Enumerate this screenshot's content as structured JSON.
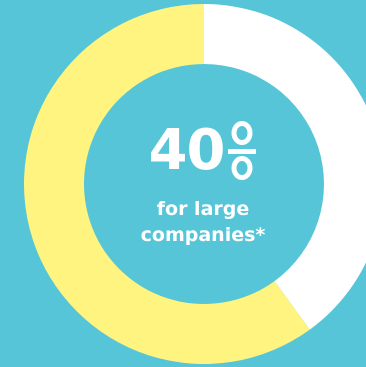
{
  "chart_data": {
    "type": "pie",
    "donut": true,
    "slices": [
      {
        "label": "",
        "value": 40,
        "color": "#ffffff"
      },
      {
        "label": "",
        "value": 60,
        "color": "#fff47f"
      }
    ],
    "background_color": "#56c5d8",
    "title": "",
    "center": {
      "value": "40",
      "unit": "%",
      "caption_line1": "for large",
      "caption_line2": "companies*"
    }
  }
}
